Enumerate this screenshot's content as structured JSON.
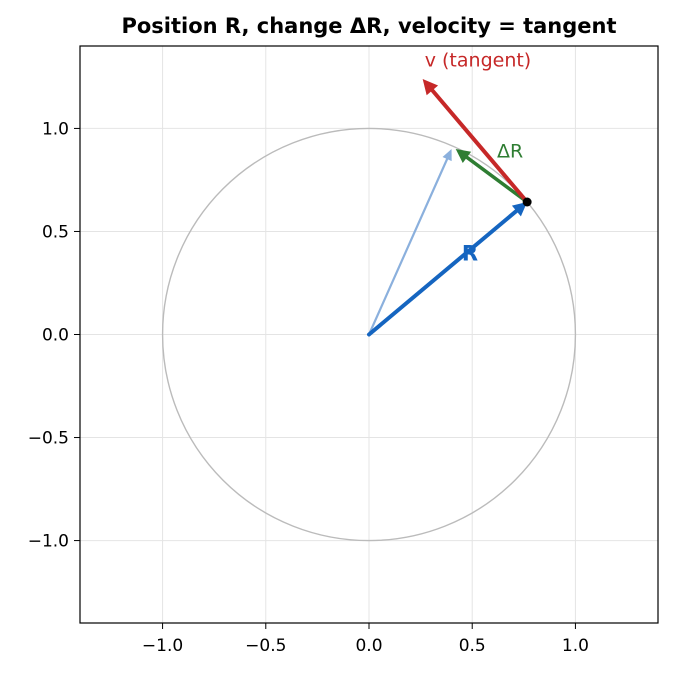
{
  "chart_data": {
    "type": "vector-diagram",
    "title": "Position R, change ΔR, velocity = tangent",
    "xlim": [
      -1.4,
      1.4
    ],
    "ylim": [
      -1.4,
      1.4
    ],
    "grid": true,
    "x_ticks": [
      -1.0,
      -0.5,
      0.0,
      0.5,
      1.0
    ],
    "x_tick_labels": [
      "−1.0",
      "−0.5",
      "0.0",
      "0.5",
      "1.0"
    ],
    "y_ticks": [
      -1.0,
      -0.5,
      0.0,
      0.5,
      1.0
    ],
    "y_tick_labels": [
      "−1.0",
      "−0.5",
      "0.0",
      "0.5",
      "1.0"
    ],
    "circle": {
      "center": [
        0,
        0
      ],
      "radius": 1.0,
      "color": "#bbbbbb"
    },
    "point": {
      "x": 0.766,
      "y": 0.643,
      "color": "#000000"
    },
    "vectors": [
      {
        "id": "R2",
        "from": [
          0,
          0
        ],
        "to": [
          0.4,
          0.9
        ],
        "color": "#8bb0dd",
        "label": ""
      },
      {
        "id": "R",
        "from": [
          0,
          0
        ],
        "to": [
          0.766,
          0.643
        ],
        "color": "#1565c0",
        "label": "R",
        "label_at": [
          0.45,
          0.36
        ]
      },
      {
        "id": "dR",
        "from": [
          0.766,
          0.643
        ],
        "to": [
          0.42,
          0.9
        ],
        "color": "#2e7d32",
        "label": "ΔR",
        "label_at": [
          0.62,
          0.86
        ]
      },
      {
        "id": "v",
        "from": [
          0.766,
          0.643
        ],
        "to": [
          0.26,
          1.24
        ],
        "color": "#c62828",
        "label": "v (tangent)",
        "label_at": [
          0.27,
          1.3
        ]
      }
    ]
  }
}
